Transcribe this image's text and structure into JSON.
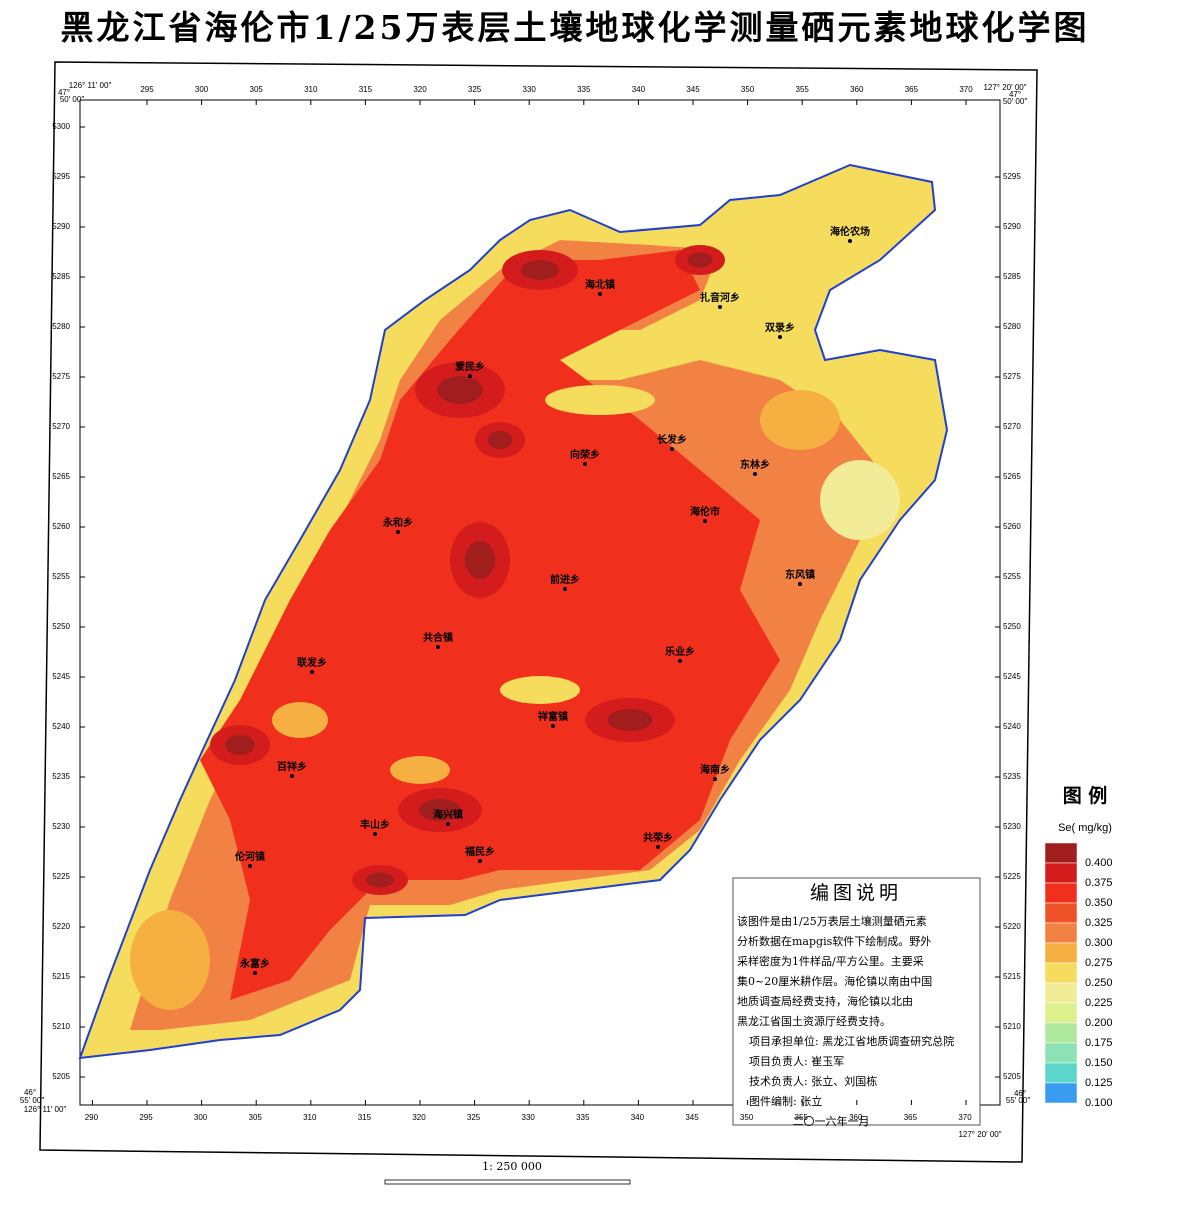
{
  "header": {
    "title": "黑龙江省海伦市1/25万表层土壤地球化学测量硒元素地球化学图"
  },
  "frame": {
    "corner_top_left": [
      "126° 11′ 00″",
      "47°",
      "50′ 00″"
    ],
    "corner_top_right": [
      "127° 20′ 00″",
      "47°",
      "50′ 00″"
    ],
    "corner_bottom_left": [
      "46°",
      "55′ 00″",
      "126° 11′ 00″"
    ],
    "corner_bottom_right": [
      "46°",
      "55′ 00″",
      "127° 20′ 00″"
    ],
    "top_ticks": [
      295,
      300,
      305,
      310,
      315,
      320,
      325,
      330,
      335,
      340,
      345,
      350,
      355,
      360,
      365,
      370
    ],
    "bottom_ticks": [
      290,
      295,
      300,
      305,
      310,
      315,
      320,
      325,
      330,
      335,
      340,
      345,
      350,
      355,
      360,
      365,
      370
    ],
    "left_ticks": [
      5300,
      5295,
      5290,
      5285,
      5280,
      5275,
      5270,
      5265,
      5260,
      5255,
      5250,
      5245,
      5240,
      5235,
      5230,
      5225,
      5220,
      5215,
      5210,
      5205
    ],
    "right_ticks": [
      5295,
      5290,
      5285,
      5280,
      5275,
      5270,
      5265,
      5260,
      5255,
      5250,
      5245,
      5240,
      5235,
      5230,
      5225,
      5220,
      5215,
      5210,
      5205
    ]
  },
  "towns": [
    "海北镇",
    "扎音河乡",
    "双录乡",
    "海伦农场",
    "爱民乡",
    "长发乡",
    "向荣乡",
    "东林乡",
    "海伦市",
    "永和乡",
    "前进乡",
    "东风镇",
    "共合镇",
    "联发乡",
    "乐业乡",
    "祥富镇",
    "百祥乡",
    "海南乡",
    "海兴镇",
    "丰山乡",
    "福民乡",
    "共荣乡",
    "伦河镇",
    "永富乡"
  ],
  "legend": {
    "title": "图 例",
    "unit": "Se( mg/kg)",
    "items": [
      {
        "label": "0.400",
        "color": "#a01e1e"
      },
      {
        "label": "0.375",
        "color": "#d41c1c"
      },
      {
        "label": "0.350",
        "color": "#f0301c"
      },
      {
        "label": "0.325",
        "color": "#f05228"
      },
      {
        "label": "0.300",
        "color": "#f28244"
      },
      {
        "label": "0.275",
        "color": "#f6b042"
      },
      {
        "label": "0.250",
        "color": "#f6dc5c"
      },
      {
        "label": "0.225",
        "color": "#f2ec98"
      },
      {
        "label": "0.200",
        "color": "#dcf08c"
      },
      {
        "label": "0.175",
        "color": "#aee89c"
      },
      {
        "label": "0.150",
        "color": "#8ce2b4"
      },
      {
        "label": "0.125",
        "color": "#5cd6ca"
      },
      {
        "label": "0.100",
        "color": "#3a9cf0"
      }
    ]
  },
  "note": {
    "title": "编图说明",
    "lines": [
      "该图件是由1/25万表层土壤测量硒元素",
      "分析数据在mapgis软件下绘制成。野外",
      "采样密度为1件样品/平方公里。主要采",
      "集0~20厘米耕作层。海伦镇以南由中国",
      "地质调查局经费支持，海伦镇以北由",
      "黑龙江省国土资源厅经费支持。",
      "项目承担单位:  黑龙江省地质调查研究总院",
      "项目负责人:   崔玉军",
      "技术负责人:   张立、刘国栋",
      "图件编制:   张立",
      "二〇一六年一月"
    ]
  },
  "scale": {
    "text": "1: 250 000"
  }
}
